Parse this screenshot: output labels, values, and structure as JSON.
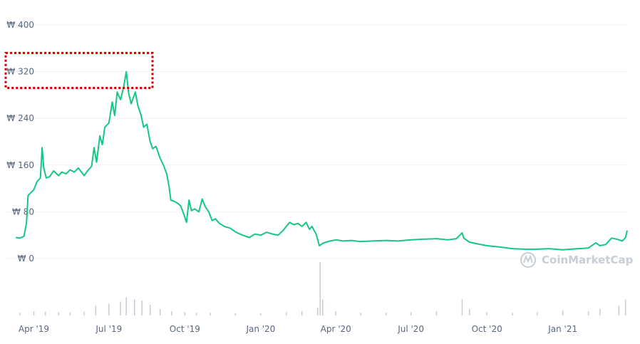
{
  "chart_data": {
    "type": "line",
    "title": "",
    "xlabel": "",
    "ylabel": "",
    "currency_symbol": "₩",
    "ylim": [
      0,
      400
    ],
    "y_ticks": [
      0,
      80,
      160,
      240,
      320,
      400
    ],
    "y_tick_labels": [
      "₩ 0",
      "₩ 80",
      "₩ 160",
      "₩ 240",
      "₩ 320",
      "₩ 400"
    ],
    "x_tick_labels": [
      "Apr '19",
      "Jul '19",
      "Oct '19",
      "Jan '20",
      "Apr '20",
      "Jul '20",
      "Oct '20",
      "Jan '21"
    ],
    "x_tick_dates": [
      "2019-04-01",
      "2019-07-01",
      "2019-10-01",
      "2020-01-01",
      "2020-04-01",
      "2020-07-01",
      "2020-10-01",
      "2021-01-01"
    ],
    "xlim": [
      "2019-03-10",
      "2021-03-20"
    ],
    "grid": true,
    "line_color": "#16c784",
    "volume_color": "#c6cbd3",
    "watermark": "CoinMarketCap",
    "series": [
      {
        "values": [
          [
            "2019-03-10",
            36
          ],
          [
            "2019-03-15",
            35
          ],
          [
            "2019-03-20",
            38
          ],
          [
            "2019-03-23",
            60
          ],
          [
            "2019-03-25",
            108
          ],
          [
            "2019-03-28",
            112
          ],
          [
            "2019-04-01",
            118
          ],
          [
            "2019-04-05",
            132
          ],
          [
            "2019-04-09",
            138
          ],
          [
            "2019-04-11",
            190
          ],
          [
            "2019-04-13",
            155
          ],
          [
            "2019-04-16",
            138
          ],
          [
            "2019-04-20",
            140
          ],
          [
            "2019-04-25",
            150
          ],
          [
            "2019-05-01",
            142
          ],
          [
            "2019-05-05",
            148
          ],
          [
            "2019-05-10",
            145
          ],
          [
            "2019-05-15",
            152
          ],
          [
            "2019-05-20",
            148
          ],
          [
            "2019-05-25",
            155
          ],
          [
            "2019-06-01",
            142
          ],
          [
            "2019-06-05",
            150
          ],
          [
            "2019-06-10",
            158
          ],
          [
            "2019-06-13",
            190
          ],
          [
            "2019-06-16",
            165
          ],
          [
            "2019-06-20",
            210
          ],
          [
            "2019-06-23",
            195
          ],
          [
            "2019-06-26",
            225
          ],
          [
            "2019-07-01",
            232
          ],
          [
            "2019-07-05",
            268
          ],
          [
            "2019-07-08",
            245
          ],
          [
            "2019-07-11",
            285
          ],
          [
            "2019-07-15",
            272
          ],
          [
            "2019-07-19",
            295
          ],
          [
            "2019-07-22",
            320
          ],
          [
            "2019-07-25",
            282
          ],
          [
            "2019-07-28",
            265
          ],
          [
            "2019-08-02",
            285
          ],
          [
            "2019-08-05",
            262
          ],
          [
            "2019-08-09",
            245
          ],
          [
            "2019-08-12",
            225
          ],
          [
            "2019-08-16",
            230
          ],
          [
            "2019-08-20",
            200
          ],
          [
            "2019-08-23",
            188
          ],
          [
            "2019-08-27",
            192
          ],
          [
            "2019-09-01",
            172
          ],
          [
            "2019-09-05",
            160
          ],
          [
            "2019-09-09",
            145
          ],
          [
            "2019-09-12",
            122
          ],
          [
            "2019-09-14",
            100
          ],
          [
            "2019-09-18",
            98
          ],
          [
            "2019-09-22",
            95
          ],
          [
            "2019-09-26",
            90
          ],
          [
            "2019-09-30",
            75
          ],
          [
            "2019-10-03",
            62
          ],
          [
            "2019-10-06",
            100
          ],
          [
            "2019-10-09",
            82
          ],
          [
            "2019-10-13",
            85
          ],
          [
            "2019-10-18",
            80
          ],
          [
            "2019-10-22",
            102
          ],
          [
            "2019-10-26",
            88
          ],
          [
            "2019-10-30",
            80
          ],
          [
            "2019-11-03",
            65
          ],
          [
            "2019-11-07",
            68
          ],
          [
            "2019-11-12",
            60
          ],
          [
            "2019-11-18",
            55
          ],
          [
            "2019-11-25",
            52
          ],
          [
            "2019-12-02",
            45
          ],
          [
            "2019-12-10",
            40
          ],
          [
            "2019-12-18",
            36
          ],
          [
            "2019-12-25",
            42
          ],
          [
            "2020-01-01",
            40
          ],
          [
            "2020-01-08",
            45
          ],
          [
            "2020-01-15",
            42
          ],
          [
            "2020-01-22",
            40
          ],
          [
            "2020-01-28",
            48
          ],
          [
            "2020-02-01",
            55
          ],
          [
            "2020-02-05",
            62
          ],
          [
            "2020-02-10",
            58
          ],
          [
            "2020-02-15",
            60
          ],
          [
            "2020-02-20",
            55
          ],
          [
            "2020-02-25",
            62
          ],
          [
            "2020-02-29",
            50
          ],
          [
            "2020-03-03",
            55
          ],
          [
            "2020-03-08",
            42
          ],
          [
            "2020-03-12",
            22
          ],
          [
            "2020-03-16",
            26
          ],
          [
            "2020-03-20",
            28
          ],
          [
            "2020-03-25",
            30
          ],
          [
            "2020-04-01",
            32
          ],
          [
            "2020-04-10",
            30
          ],
          [
            "2020-04-20",
            31
          ],
          [
            "2020-05-01",
            29
          ],
          [
            "2020-05-15",
            30
          ],
          [
            "2020-06-01",
            31
          ],
          [
            "2020-06-15",
            30
          ],
          [
            "2020-07-01",
            32
          ],
          [
            "2020-07-15",
            33
          ],
          [
            "2020-08-01",
            34
          ],
          [
            "2020-08-15",
            32
          ],
          [
            "2020-08-25",
            34
          ],
          [
            "2020-09-01",
            44
          ],
          [
            "2020-09-03",
            35
          ],
          [
            "2020-09-10",
            28
          ],
          [
            "2020-09-20",
            25
          ],
          [
            "2020-10-01",
            22
          ],
          [
            "2020-10-15",
            20
          ],
          [
            "2020-11-01",
            17
          ],
          [
            "2020-11-15",
            16
          ],
          [
            "2020-12-01",
            16
          ],
          [
            "2020-12-15",
            17
          ],
          [
            "2021-01-01",
            15
          ],
          [
            "2021-01-10",
            16
          ],
          [
            "2021-01-20",
            17
          ],
          [
            "2021-02-01",
            18
          ],
          [
            "2021-02-10",
            27
          ],
          [
            "2021-02-15",
            22
          ],
          [
            "2021-02-22",
            24
          ],
          [
            "2021-03-01",
            35
          ],
          [
            "2021-03-08",
            33
          ],
          [
            "2021-03-14",
            30
          ],
          [
            "2021-03-18",
            36
          ],
          [
            "2021-03-20",
            48
          ]
        ]
      }
    ],
    "volume": [
      [
        "2019-03-15",
        0.05
      ],
      [
        "2019-04-01",
        0.08
      ],
      [
        "2019-04-15",
        0.07
      ],
      [
        "2019-05-01",
        0.06
      ],
      [
        "2019-05-15",
        0.06
      ],
      [
        "2019-06-01",
        0.07
      ],
      [
        "2019-06-15",
        0.18
      ],
      [
        "2019-07-01",
        0.22
      ],
      [
        "2019-07-15",
        0.26
      ],
      [
        "2019-07-22",
        0.34
      ],
      [
        "2019-08-01",
        0.3
      ],
      [
        "2019-08-10",
        0.28
      ],
      [
        "2019-08-20",
        0.2
      ],
      [
        "2019-09-01",
        0.12
      ],
      [
        "2019-09-15",
        0.08
      ],
      [
        "2019-10-01",
        0.06
      ],
      [
        "2019-10-15",
        0.05
      ],
      [
        "2019-11-01",
        0.05
      ],
      [
        "2019-12-01",
        0.04
      ],
      [
        "2020-01-01",
        0.04
      ],
      [
        "2020-02-01",
        0.06
      ],
      [
        "2020-02-20",
        0.08
      ],
      [
        "2020-03-10",
        0.15
      ],
      [
        "2020-03-13",
        1.0
      ],
      [
        "2020-03-16",
        0.3
      ],
      [
        "2020-04-01",
        0.08
      ],
      [
        "2020-05-01",
        0.05
      ],
      [
        "2020-06-01",
        0.05
      ],
      [
        "2020-07-01",
        0.06
      ],
      [
        "2020-08-01",
        0.08
      ],
      [
        "2020-09-01",
        0.3
      ],
      [
        "2020-09-10",
        0.12
      ],
      [
        "2020-10-01",
        0.06
      ],
      [
        "2020-11-01",
        0.05
      ],
      [
        "2020-12-01",
        0.06
      ],
      [
        "2021-01-01",
        0.1
      ],
      [
        "2021-02-01",
        0.08
      ],
      [
        "2021-02-15",
        0.12
      ],
      [
        "2021-03-10",
        0.18
      ],
      [
        "2021-03-18",
        0.3
      ]
    ],
    "annotations": [
      {
        "type": "highlight-box",
        "style": "dotted",
        "color": "#cc0000",
        "y_from": 292,
        "y_to": 352
      }
    ]
  }
}
